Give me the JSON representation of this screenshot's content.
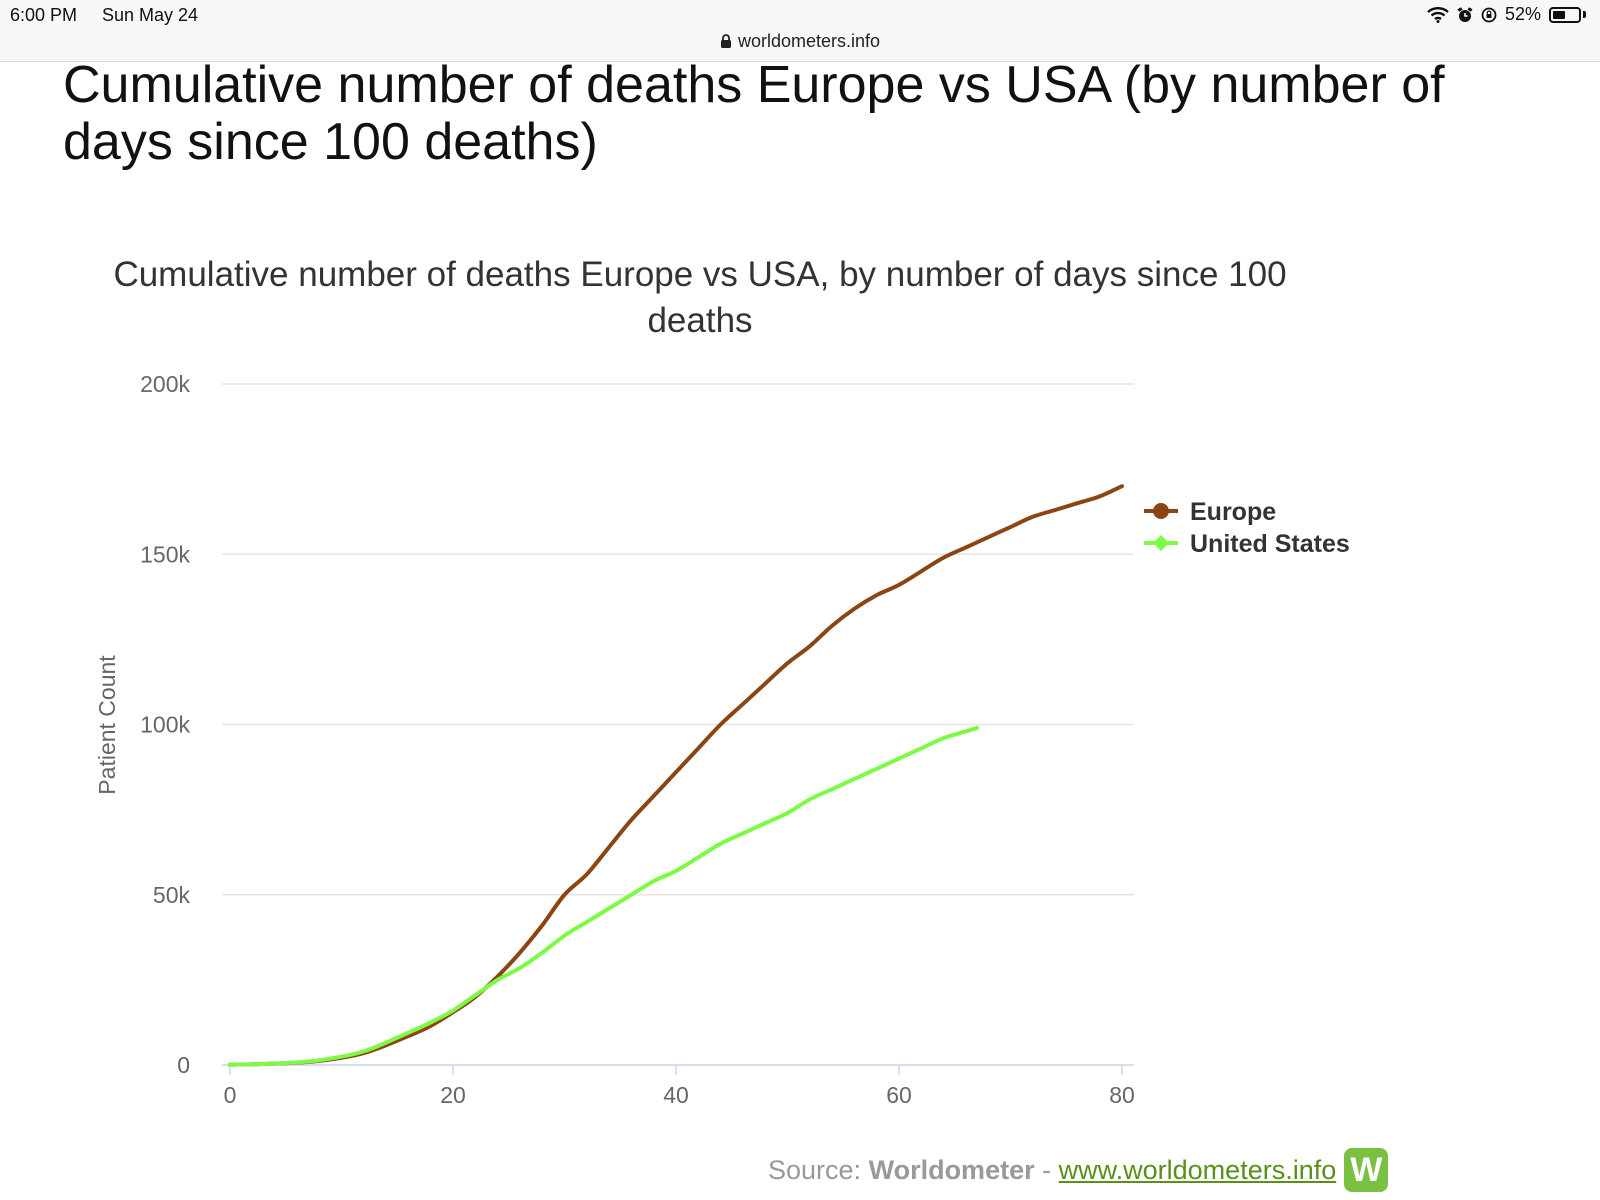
{
  "status_bar": {
    "time": "6:00 PM",
    "date": "Sun May 24",
    "url": "worldometers.info",
    "battery": "52%",
    "battery_level": 0.52,
    "icons": [
      "wifi-icon",
      "alarm-icon",
      "orientation-lock-icon",
      "battery-icon"
    ]
  },
  "page": {
    "title": "Cumulative number of deaths Europe vs USA (by number of days since 100 deaths)"
  },
  "source": {
    "prefix": "Source:",
    "name": "Worldometer",
    "separator": "-",
    "link": "www.worldometers.info",
    "logo": "W"
  },
  "colors": {
    "europe": "#8b4513",
    "united_states": "#7dfa46",
    "grid": "#e6e6e6",
    "axis_text": "#666666"
  },
  "chart_data": {
    "type": "line",
    "title": "Cumulative number of deaths Europe vs USA, by number of days since 100 deaths",
    "xlabel": "",
    "ylabel": "Patient Count",
    "xlim": [
      0,
      80
    ],
    "ylim": [
      0,
      200000
    ],
    "x_ticks": [
      0,
      20,
      40,
      60,
      80
    ],
    "x_tick_labels": [
      "0",
      "20",
      "40",
      "60",
      "80"
    ],
    "y_ticks": [
      0,
      50000,
      100000,
      150000,
      200000
    ],
    "y_tick_labels": [
      "0",
      "50k",
      "100k",
      "150k",
      "200k"
    ],
    "grid": true,
    "legend_position": "right",
    "series": [
      {
        "name": "Europe",
        "marker": "circle",
        "x": [
          0,
          4,
          8,
          12,
          16,
          18,
          20,
          22,
          24,
          26,
          28,
          30,
          32,
          34,
          36,
          38,
          40,
          42,
          44,
          46,
          48,
          50,
          52,
          54,
          56,
          58,
          60,
          62,
          64,
          66,
          68,
          70,
          72,
          74,
          76,
          78,
          80
        ],
        "y": [
          100,
          400,
          1200,
          3500,
          8500,
          11500,
          15500,
          20000,
          26000,
          33000,
          41000,
          50000,
          56000,
          64000,
          72000,
          79000,
          86000,
          93000,
          100000,
          106000,
          112000,
          118000,
          123000,
          129000,
          134000,
          138000,
          141000,
          145000,
          149000,
          152000,
          155000,
          158000,
          161000,
          163000,
          165000,
          167000,
          170000
        ]
      },
      {
        "name": "United States",
        "marker": "diamond",
        "x": [
          0,
          4,
          8,
          12,
          16,
          18,
          20,
          22,
          24,
          26,
          28,
          30,
          32,
          34,
          36,
          38,
          40,
          42,
          44,
          46,
          48,
          50,
          52,
          54,
          56,
          58,
          60,
          62,
          64,
          66,
          67
        ],
        "y": [
          100,
          400,
          1400,
          4000,
          9500,
          12500,
          16000,
          20500,
          25000,
          28500,
          33000,
          38000,
          42000,
          46000,
          50000,
          54000,
          57000,
          61000,
          65000,
          68000,
          71000,
          74000,
          78000,
          81000,
          84000,
          87000,
          90000,
          93000,
          96000,
          98000,
          99000
        ]
      }
    ]
  }
}
